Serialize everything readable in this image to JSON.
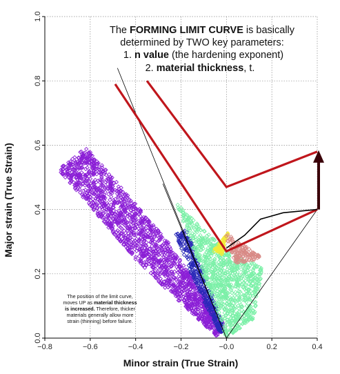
{
  "chart_data": {
    "type": "scatter",
    "title": "",
    "xlabel": "Minor strain (True Strain)",
    "ylabel": "Major strain (True Strain)",
    "xlim": [
      -0.8,
      0.4
    ],
    "ylim": [
      0.0,
      1.0
    ],
    "x_ticks": [
      "−0.8",
      "−0.6",
      "−0.4",
      "−0.2",
      "−0.0",
      "0.2",
      "0.4"
    ],
    "y_ticks": [
      "0.0",
      "0.2",
      "0.4",
      "0.6",
      "0.8",
      "1.0"
    ],
    "grid": true,
    "headline": {
      "line1_pre": "The ",
      "line1_bold": "FORMING LIMIT CURVE",
      "line1_post": " is basically",
      "line2": "determined by TWO key parameters:",
      "item1_num": "1. ",
      "item1_bold": "n value",
      "item1_rest": " (the hardening exponent)",
      "item2_num": "2. ",
      "item2_bold": "material thickness",
      "item2_rest": ", t."
    },
    "annotation": {
      "line1": "The position of the limit curve,",
      "line2_pre": "moves UP as ",
      "line2_bold": "material thickness",
      "line3_bold": "is increased.",
      "line3_rest": " Therefore, thicker",
      "line4": "materials generally allow more",
      "line5": "strain (thinning) before failure."
    },
    "series": [
      {
        "color": "#8b1fd6",
        "x_range": [
          -0.72,
          -0.18
        ],
        "y_range": [
          0.0,
          0.59
        ]
      },
      {
        "color": "#2a2ab8",
        "x_range": [
          -0.25,
          0.0
        ],
        "y_range": [
          0.0,
          0.38
        ]
      },
      {
        "color": "#7cf0a8",
        "x_range": [
          -0.22,
          0.18
        ],
        "y_range": [
          0.0,
          0.42
        ]
      },
      {
        "color": "#f2ec3a",
        "x_range": [
          -0.06,
          0.02
        ],
        "y_range": [
          0.26,
          0.34
        ]
      },
      {
        "color": "#d88a86",
        "x_range": [
          -0.02,
          0.16
        ],
        "y_range": [
          0.23,
          0.35
        ]
      }
    ],
    "limit_curves": [
      {
        "color": "#c0161c",
        "points": [
          [
            -0.49,
            0.79
          ],
          [
            0.0,
            0.27
          ],
          [
            0.4,
            0.4
          ]
        ]
      },
      {
        "color": "#c0161c",
        "points": [
          [
            -0.35,
            0.8
          ],
          [
            0.0,
            0.47
          ],
          [
            0.4,
            0.58
          ]
        ]
      },
      {
        "color": "#000000",
        "points": [
          [
            0.0,
            0.28
          ],
          [
            0.08,
            0.32
          ],
          [
            0.15,
            0.37
          ],
          [
            0.25,
            0.39
          ],
          [
            0.4,
            0.4
          ]
        ]
      }
    ],
    "safe_region_lines": [
      {
        "points": [
          [
            -0.48,
            0.84
          ],
          [
            0.0,
            0.0
          ],
          [
            0.4,
            0.4
          ]
        ]
      },
      {
        "points": [
          [
            0.0,
            0.0
          ],
          [
            -0.28,
            0.48
          ]
        ]
      }
    ],
    "arrow": {
      "color": "#3a0008",
      "x": 0.4,
      "y_from": 0.4,
      "y_to": 0.58
    }
  }
}
